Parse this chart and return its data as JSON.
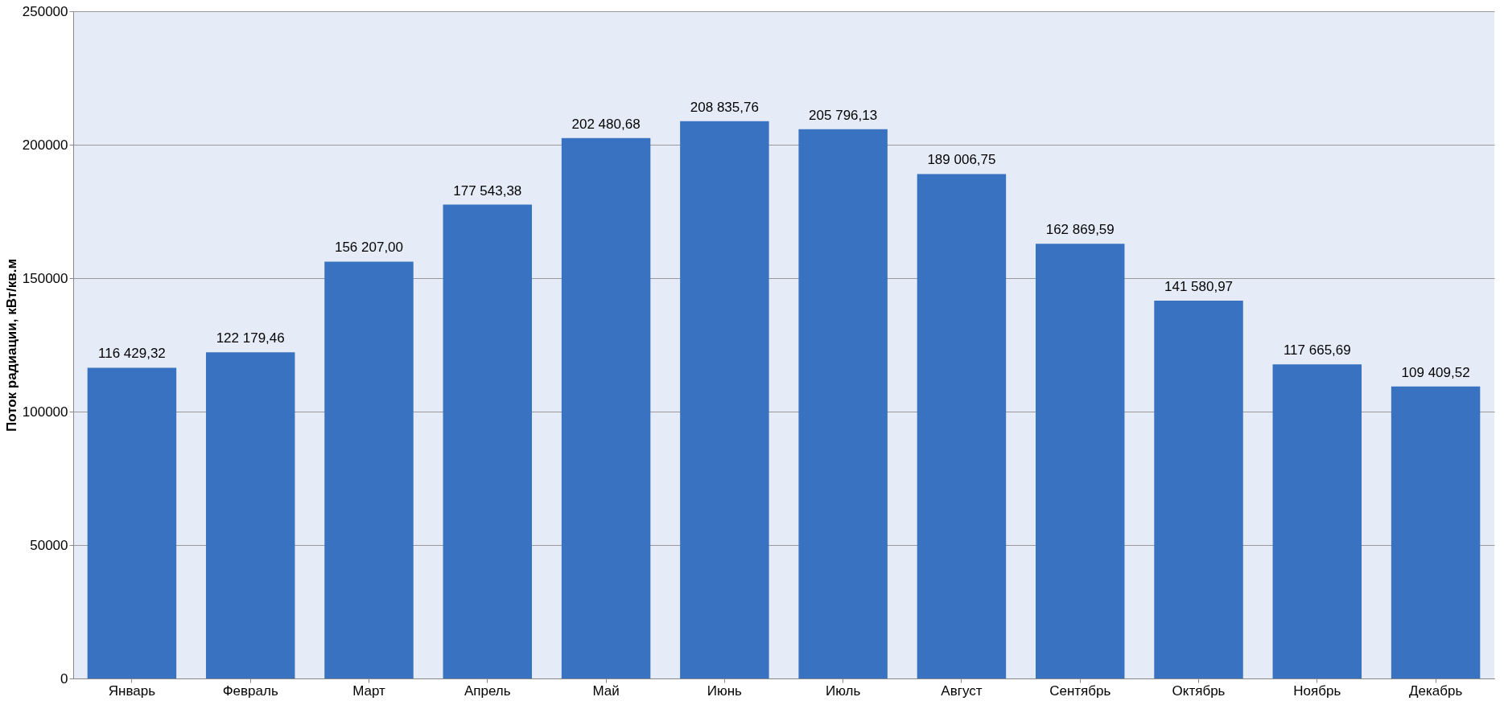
{
  "chart_data": {
    "type": "bar",
    "ylabel": "Поток радиации, кВт/кв.м",
    "categories": [
      "Январь",
      "Февраль",
      "Март",
      "Апрель",
      "Май",
      "Июнь",
      "Июль",
      "Август",
      "Сентябрь",
      "Октябрь",
      "Ноябрь",
      "Декабрь"
    ],
    "values": [
      116429.32,
      122179.46,
      156207.0,
      177543.38,
      202480.68,
      208835.76,
      205796.13,
      189006.75,
      162869.59,
      141580.97,
      117665.69,
      109409.52
    ],
    "value_labels": [
      "116 429,32",
      "122 179,46",
      "156 207,00",
      "177 543,38",
      "202 480,68",
      "208 835,76",
      "205 796,13",
      "189 006,75",
      "162 869,59",
      "141 580,97",
      "117 665,69",
      "109 409,52"
    ],
    "color": "#3872c0",
    "ylim": [
      0,
      250000
    ],
    "yticks": [
      0,
      50000,
      100000,
      150000,
      200000,
      250000
    ],
    "grid": "y"
  }
}
